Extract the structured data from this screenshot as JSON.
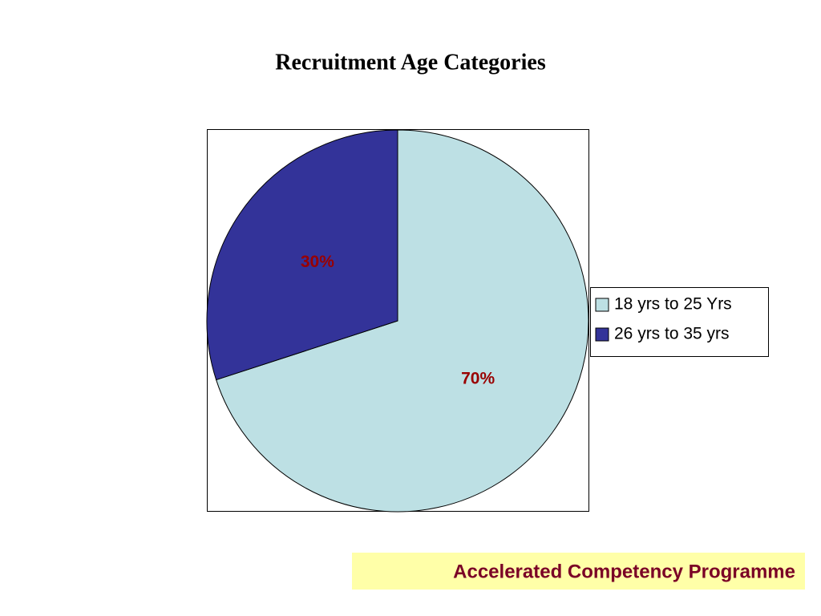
{
  "chart_data": {
    "type": "pie",
    "title": "Recruitment Age Categories",
    "categories": [
      "18 yrs to 25 Yrs",
      "26 yrs to 35 yrs"
    ],
    "values": [
      70,
      30
    ],
    "value_labels": [
      "70%",
      "30%"
    ],
    "colors": [
      "#bde0e4",
      "#333399"
    ],
    "legend": "right"
  },
  "footer": "Accelerated Competency Programme"
}
